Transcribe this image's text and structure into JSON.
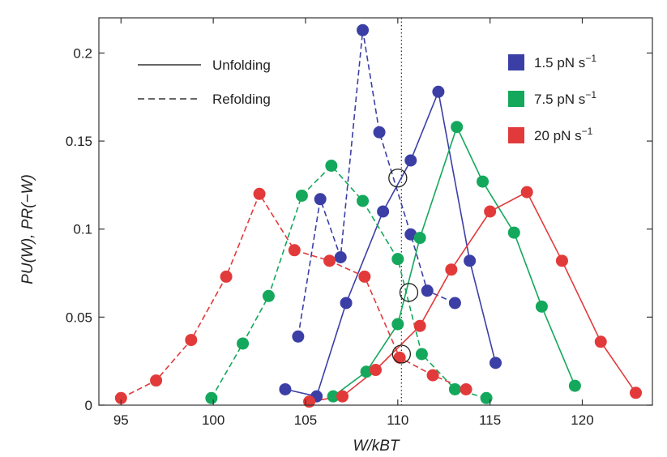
{
  "chart_data": {
    "type": "line",
    "xlabel": "W/kBT",
    "ylabel": "PU(W), PR(−W)",
    "xlim": [
      93.8,
      123.8
    ],
    "ylim": [
      0,
      0.22
    ],
    "x_ticks": [
      95,
      100,
      105,
      110,
      115,
      120
    ],
    "y_ticks": [
      0,
      0.05,
      0.1,
      0.15,
      0.2
    ],
    "x_tick_labels": [
      "95",
      "100",
      "105",
      "110",
      "115",
      "120"
    ],
    "y_tick_labels": [
      "0",
      "0.05",
      "0.1",
      "0.15",
      "0.2"
    ],
    "vline_x": 110.2,
    "crossing_markers": [
      {
        "x": 110.0,
        "y": 0.129
      },
      {
        "x": 110.6,
        "y": 0.064
      },
      {
        "x": 110.2,
        "y": 0.029
      }
    ],
    "line_style_legend": [
      {
        "label": "Unfolding",
        "style": "solid"
      },
      {
        "label": "Refolding",
        "style": "dashed"
      }
    ],
    "color_legend": [
      {
        "label": "1.5 pN s",
        "superscript": "−1",
        "color": "#3b3fa5"
      },
      {
        "label": "7.5 pN s",
        "superscript": "−1",
        "color": "#14a85c"
      },
      {
        "label": "20 pN s",
        "superscript": "−1",
        "color": "#e23a3a"
      }
    ],
    "series": [
      {
        "rate": "1.5 pN s−1",
        "process": "Unfolding",
        "color": "#3b3fa5",
        "style": "solid",
        "x": [
          103.9,
          105.6,
          107.2,
          109.2,
          110.7,
          112.2,
          113.9,
          115.3
        ],
        "y": [
          0.009,
          0.005,
          0.058,
          0.11,
          0.139,
          0.178,
          0.082,
          0.024
        ]
      },
      {
        "rate": "1.5 pN s−1",
        "process": "Refolding",
        "color": "#3b3fa5",
        "style": "dashed",
        "x": [
          104.6,
          105.8,
          106.9,
          108.1,
          110.7,
          111.6,
          113.1,
          109.0
        ],
        "y": [
          0.039,
          0.117,
          0.084,
          0.213,
          0.097,
          0.065,
          0.058,
          0.155
        ],
        "order": [
          0,
          1,
          2,
          3,
          7,
          4,
          5,
          6
        ]
      },
      {
        "rate": "7.5 pN s−1",
        "process": "Unfolding",
        "color": "#14a85c",
        "style": "solid",
        "x": [
          106.5,
          108.3,
          110.0,
          111.2,
          113.2,
          114.6,
          116.3,
          117.8,
          119.6
        ],
        "y": [
          0.005,
          0.019,
          0.046,
          0.095,
          0.158,
          0.127,
          0.098,
          0.056,
          0.011
        ]
      },
      {
        "rate": "7.5 pN s−1",
        "process": "Refolding",
        "color": "#14a85c",
        "style": "dashed",
        "x": [
          99.9,
          101.6,
          103.0,
          104.8,
          106.4,
          108.1,
          110.0,
          111.3,
          113.1,
          114.8
        ],
        "y": [
          0.004,
          0.035,
          0.062,
          0.119,
          0.136,
          0.116,
          0.083,
          0.029,
          0.009,
          0.004
        ]
      },
      {
        "rate": "20 pN s−1",
        "process": "Unfolding",
        "color": "#e23a3a",
        "style": "solid",
        "x": [
          105.2,
          107.0,
          108.8,
          111.2,
          112.9,
          115.0,
          117.0,
          118.9,
          121.0,
          122.9
        ],
        "y": [
          0.002,
          0.005,
          0.02,
          0.045,
          0.077,
          0.11,
          0.121,
          0.082,
          0.036,
          0.007
        ]
      },
      {
        "rate": "20 pN s−1",
        "process": "Refolding",
        "color": "#e23a3a",
        "style": "dashed",
        "x": [
          95.0,
          96.9,
          98.8,
          100.7,
          102.5,
          104.4,
          106.3,
          108.2,
          110.1,
          111.9,
          113.7
        ],
        "y": [
          0.004,
          0.014,
          0.037,
          0.073,
          0.12,
          0.088,
          0.082,
          0.073,
          0.027,
          0.017,
          0.009
        ]
      }
    ]
  }
}
